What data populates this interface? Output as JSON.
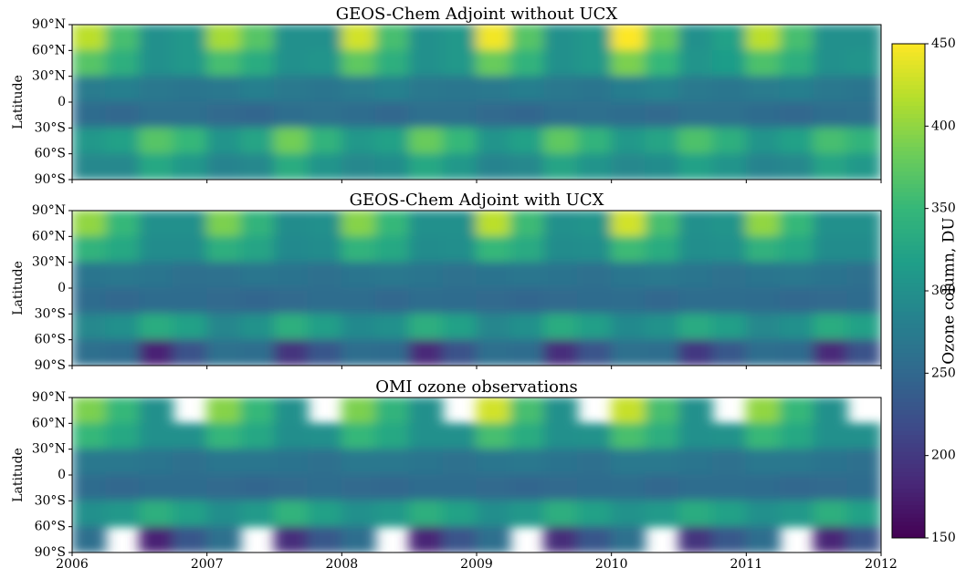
{
  "chart_data": [
    {
      "type": "heatmap",
      "title": "GEOS-Chem Adjoint without UCX",
      "ylabel": "Latitude",
      "xlim": [
        2006,
        2012
      ],
      "ylim": [
        -90,
        90
      ],
      "yticks": [
        {
          "value": 90,
          "label": "90°N"
        },
        {
          "value": 60,
          "label": "60°N"
        },
        {
          "value": 30,
          "label": "30°N"
        },
        0,
        {
          "value": -30,
          "label": "30°S"
        },
        {
          "value": -60,
          "label": "60°S"
        },
        {
          "value": -90,
          "label": "90°S"
        }
      ],
      "z": [
        [
          420,
          360,
          300,
          310,
          410,
          370,
          300,
          300,
          430,
          360,
          300,
          310,
          445,
          370,
          300,
          310,
          460,
          380,
          300,
          320,
          420,
          360,
          300,
          300
        ],
        [
          370,
          340,
          300,
          310,
          360,
          335,
          300,
          305,
          375,
          340,
          300,
          310,
          380,
          345,
          300,
          310,
          390,
          350,
          305,
          315,
          365,
          340,
          300,
          305
        ],
        [
          275,
          280,
          270,
          265,
          270,
          280,
          272,
          265,
          275,
          282,
          270,
          268,
          272,
          278,
          270,
          265,
          278,
          285,
          272,
          268,
          274,
          280,
          270,
          265
        ],
        [
          255,
          250,
          260,
          260,
          252,
          248,
          258,
          262,
          256,
          250,
          260,
          260,
          254,
          248,
          258,
          260,
          257,
          252,
          262,
          262,
          255,
          250,
          258,
          260
        ],
        [
          310,
          320,
          370,
          350,
          305,
          325,
          385,
          345,
          310,
          320,
          380,
          350,
          305,
          320,
          375,
          345,
          310,
          325,
          365,
          340,
          305,
          320,
          360,
          345
        ],
        [
          290,
          290,
          330,
          310,
          285,
          290,
          335,
          305,
          290,
          295,
          330,
          310,
          285,
          290,
          325,
          305,
          290,
          295,
          320,
          305,
          285,
          290,
          325,
          310
        ]
      ]
    },
    {
      "type": "heatmap",
      "title": "GEOS-Chem Adjoint with UCX",
      "ylabel": "Latitude",
      "xlim": [
        2006,
        2012
      ],
      "ylim": [
        -90,
        90
      ],
      "yticks": [
        {
          "value": 90,
          "label": "90°N"
        },
        {
          "value": 60,
          "label": "60°N"
        },
        {
          "value": 30,
          "label": "30°N"
        },
        0,
        {
          "value": -30,
          "label": "30°S"
        },
        {
          "value": -60,
          "label": "60°S"
        },
        {
          "value": -90,
          "label": "90°S"
        }
      ],
      "z": [
        [
          400,
          350,
          300,
          300,
          390,
          345,
          295,
          300,
          395,
          350,
          300,
          300,
          420,
          355,
          300,
          305,
          430,
          360,
          300,
          305,
          400,
          350,
          300,
          300
        ],
        [
          345,
          330,
          295,
          295,
          340,
          325,
          292,
          295,
          345,
          330,
          295,
          298,
          350,
          332,
          295,
          298,
          355,
          335,
          298,
          300,
          342,
          328,
          295,
          295
        ],
        [
          265,
          270,
          265,
          260,
          262,
          268,
          264,
          260,
          266,
          270,
          265,
          262,
          264,
          268,
          264,
          260,
          268,
          272,
          266,
          262,
          265,
          270,
          264,
          260
        ],
        [
          255,
          250,
          255,
          255,
          252,
          248,
          254,
          256,
          256,
          250,
          256,
          255,
          254,
          248,
          254,
          255,
          256,
          250,
          256,
          256,
          255,
          250,
          254,
          255
        ],
        [
          290,
          300,
          335,
          320,
          288,
          302,
          340,
          318,
          292,
          300,
          338,
          320,
          288,
          300,
          335,
          318,
          292,
          302,
          332,
          318,
          290,
          300,
          335,
          320
        ],
        [
          260,
          255,
          180,
          225,
          262,
          258,
          195,
          230,
          258,
          255,
          185,
          225,
          260,
          256,
          190,
          228,
          262,
          258,
          200,
          232,
          258,
          255,
          185,
          226
        ]
      ]
    },
    {
      "type": "heatmap",
      "title": "OMI ozone observations",
      "ylabel": "Latitude",
      "xlim": [
        2006,
        2012
      ],
      "ylim": [
        -90,
        90
      ],
      "xticks": [
        2006,
        2007,
        2008,
        2009,
        2010,
        2011,
        2012
      ],
      "yticks": [
        {
          "value": 90,
          "label": "90°N"
        },
        {
          "value": 60,
          "label": "60°N"
        },
        {
          "value": 30,
          "label": "30°N"
        },
        0,
        {
          "value": -30,
          "label": "30°S"
        },
        {
          "value": -60,
          "label": "60°S"
        },
        {
          "value": -90,
          "label": "90°S"
        }
      ],
      "z": [
        [
          390,
          350,
          300,
          null,
          395,
          350,
          300,
          null,
          390,
          345,
          300,
          null,
          430,
          360,
          300,
          null,
          425,
          360,
          300,
          null,
          400,
          350,
          300,
          null
        ],
        [
          350,
          330,
          300,
          300,
          348,
          328,
          298,
          300,
          350,
          330,
          300,
          300,
          360,
          335,
          300,
          302,
          362,
          338,
          300,
          302,
          352,
          330,
          300,
          300
        ],
        [
          270,
          270,
          265,
          260,
          268,
          268,
          264,
          260,
          270,
          270,
          265,
          262,
          268,
          270,
          264,
          260,
          272,
          272,
          266,
          262,
          270,
          270,
          264,
          260
        ],
        [
          255,
          250,
          255,
          255,
          252,
          248,
          254,
          256,
          254,
          250,
          255,
          255,
          252,
          248,
          254,
          255,
          256,
          250,
          256,
          256,
          255,
          250,
          254,
          255
        ],
        [
          300,
          310,
          340,
          320,
          298,
          312,
          345,
          320,
          300,
          310,
          340,
          322,
          298,
          310,
          338,
          320,
          302,
          312,
          335,
          320,
          300,
          310,
          340,
          320
        ],
        [
          260,
          null,
          180,
          230,
          262,
          null,
          190,
          232,
          258,
          null,
          182,
          228,
          260,
          null,
          188,
          230,
          262,
          null,
          195,
          232,
          258,
          null,
          182,
          228
        ]
      ]
    }
  ],
  "colorbar": {
    "label": "Ozone column, DU",
    "lim": [
      150,
      450
    ],
    "ticks": [
      150,
      200,
      250,
      300,
      350,
      400,
      450
    ],
    "colormap": "viridis"
  }
}
